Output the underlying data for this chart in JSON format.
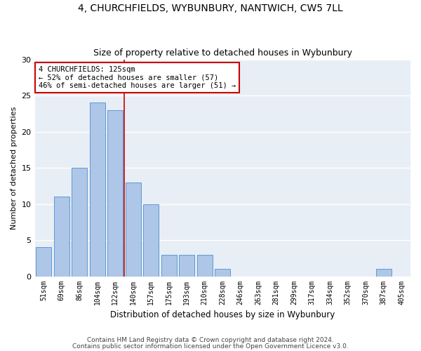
{
  "title": "4, CHURCHFIELDS, WYBUNBURY, NANTWICH, CW5 7LL",
  "subtitle": "Size of property relative to detached houses in Wybunbury",
  "xlabel": "Distribution of detached houses by size in Wybunbury",
  "ylabel": "Number of detached properties",
  "bar_labels": [
    "51sqm",
    "69sqm",
    "86sqm",
    "104sqm",
    "122sqm",
    "140sqm",
    "157sqm",
    "175sqm",
    "193sqm",
    "210sqm",
    "228sqm",
    "246sqm",
    "263sqm",
    "281sqm",
    "299sqm",
    "317sqm",
    "334sqm",
    "352sqm",
    "370sqm",
    "387sqm",
    "405sqm"
  ],
  "bar_values": [
    4,
    11,
    15,
    24,
    23,
    13,
    10,
    3,
    3,
    3,
    1,
    0,
    0,
    0,
    0,
    0,
    0,
    0,
    0,
    1,
    0
  ],
  "bar_color": "#aec6e8",
  "bar_edge_color": "#5b9bd5",
  "background_color": "#e8eef5",
  "grid_color": "#ffffff",
  "annotation_text": "4 CHURCHFIELDS: 125sqm\n← 52% of detached houses are smaller (57)\n46% of semi-detached houses are larger (51) →",
  "annotation_box_color": "#ffffff",
  "annotation_box_edge_color": "#cc0000",
  "ylim": [
    0,
    30
  ],
  "yticks": [
    0,
    5,
    10,
    15,
    20,
    25,
    30
  ],
  "line_bar_index": 4,
  "footnote1": "Contains HM Land Registry data © Crown copyright and database right 2024.",
  "footnote2": "Contains public sector information licensed under the Open Government Licence v3.0."
}
